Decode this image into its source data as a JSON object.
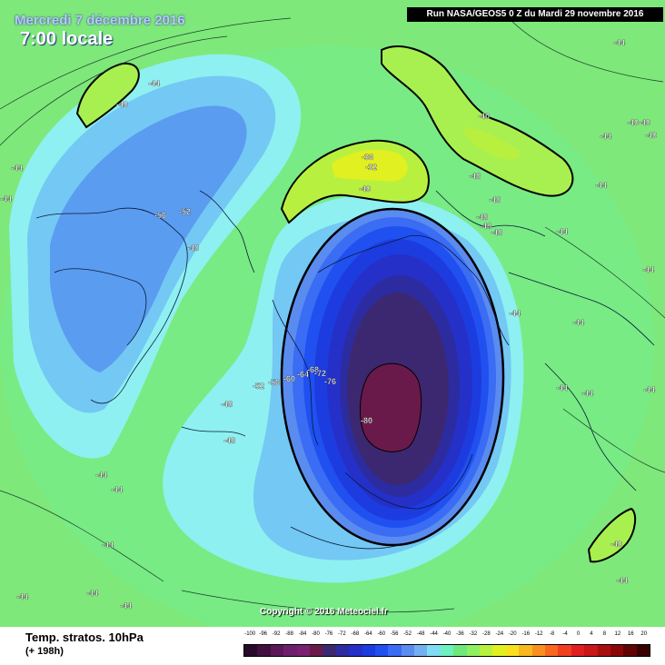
{
  "header": {
    "date_line": "Mercredi 7 décembre 2016",
    "time_line": "7:00 locale",
    "run_info": "Run NASA/GEOS5 0 Z du Mardi 29 novembre 2016"
  },
  "footer": {
    "title": "Temp. stratos. 10hPa",
    "lead_time": "(+ 198h)",
    "copyright": "Copyright © 2016 Meteociel.fr"
  },
  "legend": {
    "labels": [
      "-100",
      "-96",
      "-92",
      "-88",
      "-84",
      "-80",
      "-76",
      "-72",
      "-68",
      "-64",
      "-60",
      "-56",
      "-52",
      "-48",
      "-44",
      "-40",
      "-36",
      "-32",
      "-28",
      "-24",
      "-20",
      "-16",
      "-12",
      "-8",
      "-4",
      "0",
      "4",
      "8",
      "12",
      "16",
      "20"
    ],
    "colors": [
      "#2a0a2a",
      "#40103f",
      "#5a1858",
      "#6e1f6c",
      "#7a2070",
      "#6a1a4a",
      "#3c2870",
      "#2c2ca0",
      "#2430c8",
      "#1c3ce0",
      "#2050f0",
      "#3a6cf4",
      "#5a8cf0",
      "#74b0f0",
      "#80dcf4",
      "#6ef0c0",
      "#6ee87a",
      "#8ef060",
      "#b8f040",
      "#e0f020",
      "#f8e020",
      "#f8b820",
      "#f89020",
      "#f86820",
      "#f04020",
      "#e02020",
      "#c81818",
      "#a81010",
      "#880808",
      "#600404",
      "#380202"
    ]
  },
  "map": {
    "contour_labels": [
      {
        "text": "-44"
      },
      {
        "text": "-44"
      },
      {
        "text": "-44"
      },
      {
        "text": "-44"
      },
      {
        "text": "-44"
      },
      {
        "text": "-44"
      },
      {
        "text": "-44"
      },
      {
        "text": "-44"
      },
      {
        "text": "-44"
      },
      {
        "text": "-44"
      },
      {
        "text": "-44"
      },
      {
        "text": "-44"
      },
      {
        "text": "-44"
      },
      {
        "text": "-44"
      },
      {
        "text": "-44"
      },
      {
        "text": "-44"
      },
      {
        "text": "-44"
      },
      {
        "text": "-44"
      },
      {
        "text": "-44"
      },
      {
        "text": "-44"
      },
      {
        "text": "-40"
      },
      {
        "text": "-40"
      },
      {
        "text": "-40"
      },
      {
        "text": "-40"
      },
      {
        "text": "-40"
      },
      {
        "text": "-40"
      },
      {
        "text": "-40"
      },
      {
        "text": "-36"
      },
      {
        "text": "-32"
      },
      {
        "text": "-48"
      },
      {
        "text": "-48"
      },
      {
        "text": "-48"
      },
      {
        "text": "-48"
      },
      {
        "text": "-48"
      },
      {
        "text": "-48"
      },
      {
        "text": "-48"
      },
      {
        "text": "-48"
      },
      {
        "text": "-52"
      },
      {
        "text": "-52"
      },
      {
        "text": "-56"
      },
      {
        "text": "-56"
      },
      {
        "text": "-60"
      },
      {
        "text": "-64"
      },
      {
        "text": "-68"
      },
      {
        "text": "-72"
      },
      {
        "text": "-76"
      },
      {
        "text": "-80"
      }
    ]
  }
}
